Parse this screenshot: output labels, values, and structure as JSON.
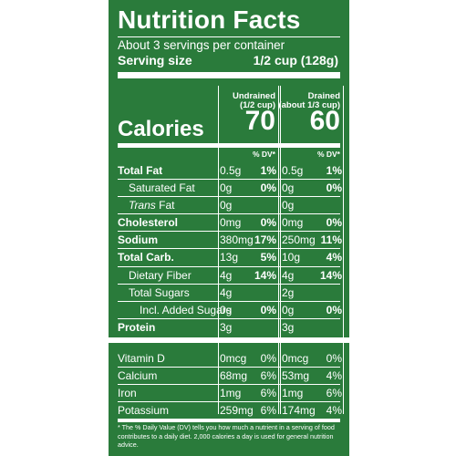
{
  "title": "Nutrition Facts",
  "servings_per_container": "About 3 servings per container",
  "serving_size_label": "Serving size",
  "serving_size_amount": "1/2 cup (128g)",
  "calories_label": "Calories",
  "columns": [
    {
      "head_line1": "Undrained",
      "head_line2": "(1/2 cup)",
      "calories": "70",
      "dv_label": "% DV*"
    },
    {
      "head_line1": "Drained",
      "head_line2": "(about 1/3 cup)",
      "calories": "60",
      "dv_label": "% DV*"
    }
  ],
  "nutrients": [
    {
      "name": "Total Fat",
      "a1": "0.5g",
      "p1": "1%",
      "a2": "0.5g",
      "p2": "1%"
    },
    {
      "name": "Saturated Fat",
      "a1": "0g",
      "p1": "0%",
      "a2": "0g",
      "p2": "0%"
    },
    {
      "name_italic": "Trans",
      "name_rest": " Fat",
      "a1": "0g",
      "a2": "0g"
    },
    {
      "name": "Cholesterol",
      "a1": "0mg",
      "p1": "0%",
      "a2": "0mg",
      "p2": "0%"
    },
    {
      "name": "Sodium",
      "a1": "380mg",
      "p1": "17%",
      "a2": "250mg",
      "p2": "11%"
    },
    {
      "name": "Total Carb.",
      "a1": "13g",
      "p1": "5%",
      "a2": "10g",
      "p2": "4%"
    },
    {
      "name": "Dietary Fiber",
      "a1": "4g",
      "p1": "14%",
      "a2": "4g",
      "p2": "14%"
    },
    {
      "name": "Total Sugars",
      "a1": "4g",
      "a2": "2g"
    },
    {
      "name": "Incl. Added Sugars",
      "a1": "0g",
      "p1": "0%",
      "a2": "0g",
      "p2": "0%"
    },
    {
      "name": "Protein",
      "a1": "3g",
      "a2": "3g"
    },
    {
      "name": "Vitamin D",
      "a1": "0mcg",
      "p1": "0%",
      "a2": "0mcg",
      "p2": "0%"
    },
    {
      "name": "Calcium",
      "a1": "68mg",
      "p1": "6%",
      "a2": "53mg",
      "p2": "4%"
    },
    {
      "name": "Iron",
      "a1": "1mg",
      "p1": "6%",
      "a2": "1mg",
      "p2": "6%"
    },
    {
      "name": "Potassium",
      "a1": "259mg",
      "p1": "6%",
      "a2": "174mg",
      "p2": "4%"
    }
  ],
  "footnote": "* The % Daily Value (DV) tells you how much a nutrient in a serving of food contributes to a daily diet. 2,000 calories a day is used for general nutrition advice."
}
